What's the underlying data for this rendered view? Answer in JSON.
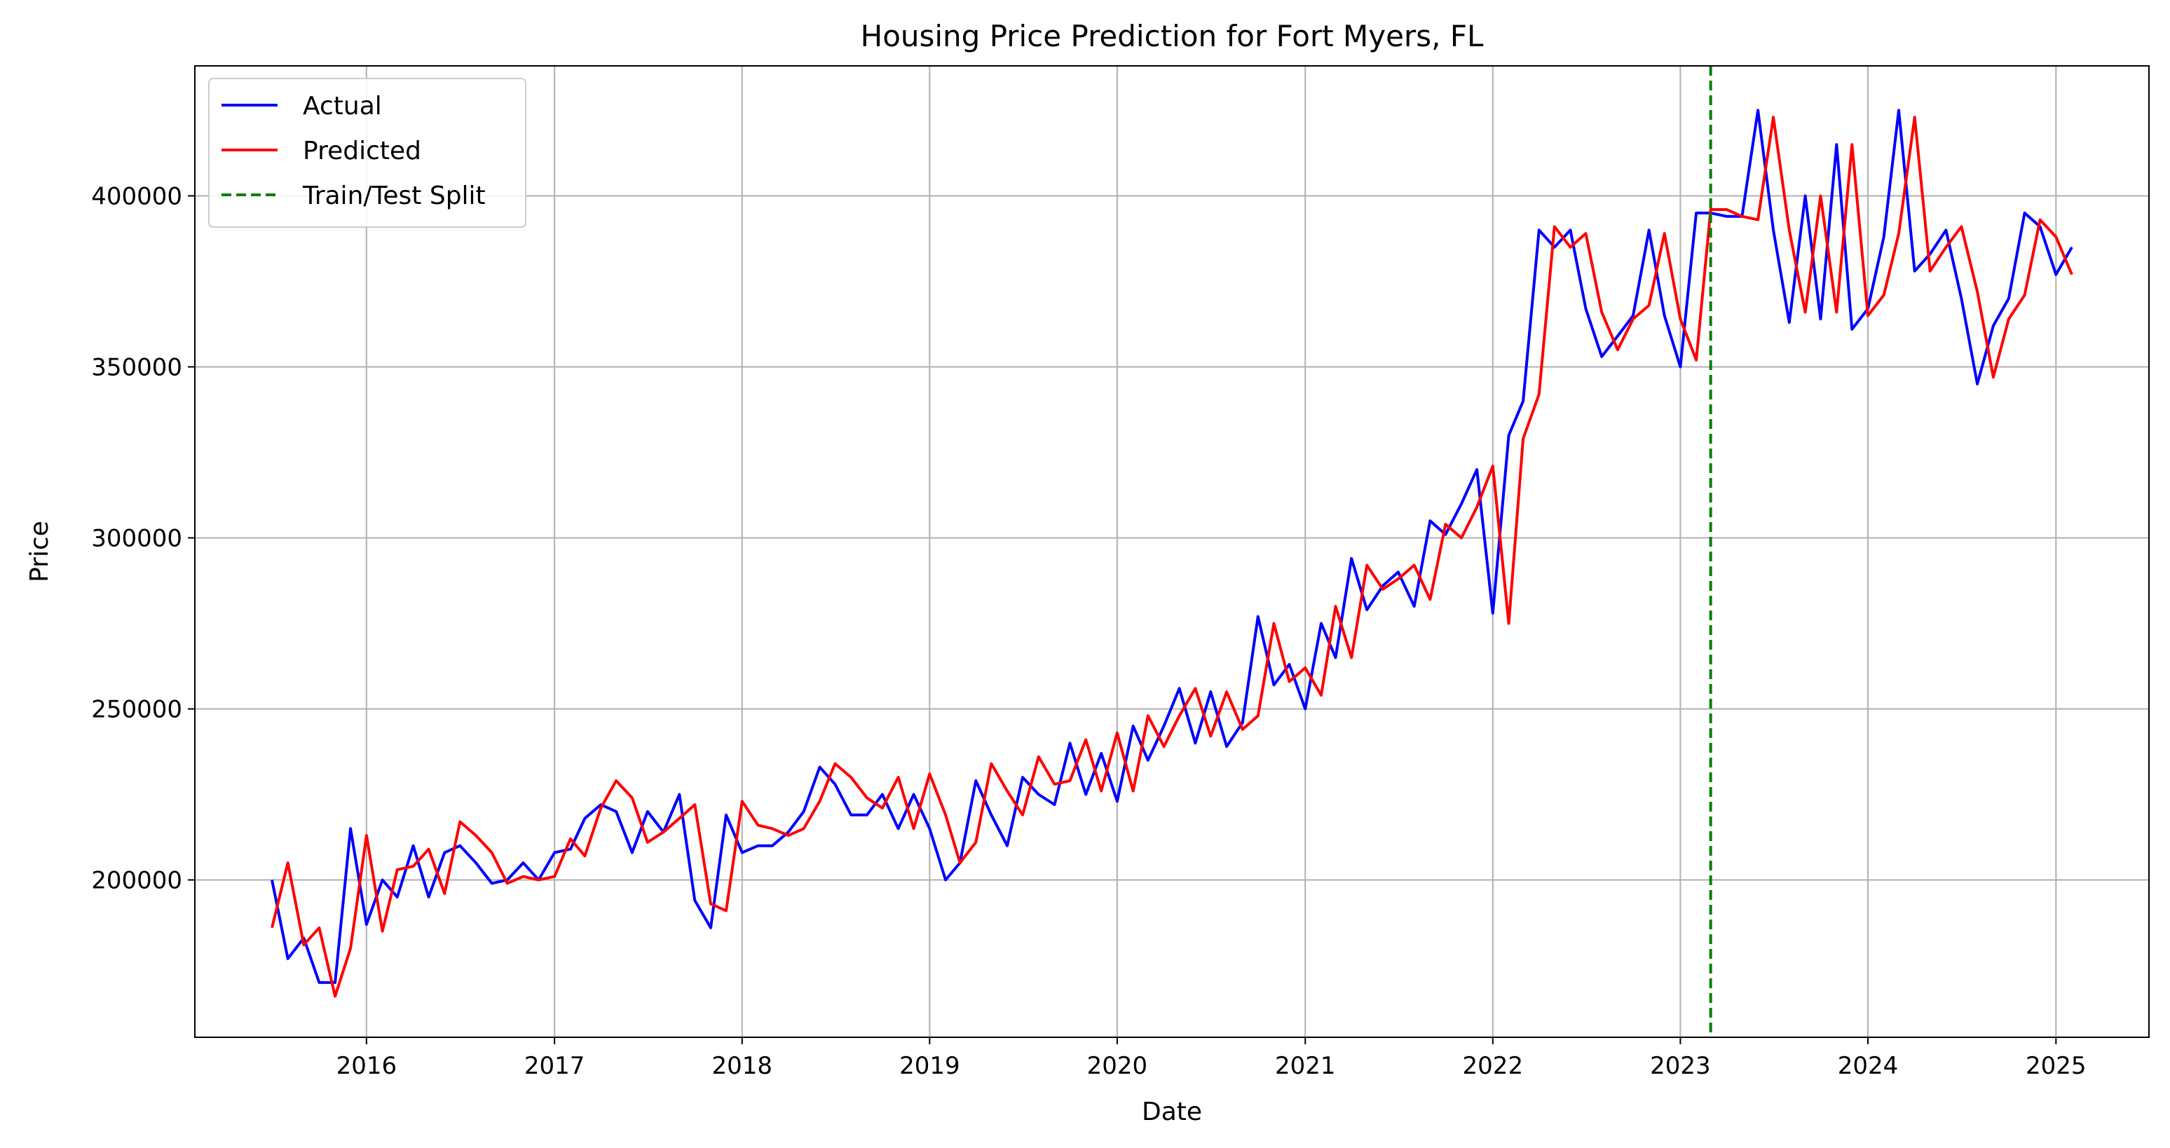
{
  "chart_data": {
    "type": "line",
    "title": "Housing Price Prediction for Fort Myers, FL",
    "xlabel": "Date",
    "ylabel": "Price",
    "xlim": [
      "2015-02-01",
      "2025-07-01"
    ],
    "ylim": [
      154000,
      438000
    ],
    "grid": true,
    "legend_position": "upper-left",
    "x_ticks": [
      "2016",
      "2017",
      "2018",
      "2019",
      "2020",
      "2021",
      "2022",
      "2023",
      "2024",
      "2025"
    ],
    "y_ticks": [
      200000,
      250000,
      300000,
      350000,
      400000
    ],
    "x": [
      "2015-07",
      "2015-08",
      "2015-09",
      "2015-10",
      "2015-11",
      "2015-12",
      "2016-01",
      "2016-02",
      "2016-03",
      "2016-04",
      "2016-05",
      "2016-06",
      "2016-07",
      "2016-08",
      "2016-09",
      "2016-10",
      "2016-11",
      "2016-12",
      "2017-01",
      "2017-02",
      "2017-03",
      "2017-04",
      "2017-05",
      "2017-06",
      "2017-07",
      "2017-08",
      "2017-09",
      "2017-10",
      "2017-11",
      "2017-12",
      "2018-01",
      "2018-02",
      "2018-03",
      "2018-04",
      "2018-05",
      "2018-06",
      "2018-07",
      "2018-08",
      "2018-09",
      "2018-10",
      "2018-11",
      "2018-12",
      "2019-01",
      "2019-02",
      "2019-03",
      "2019-04",
      "2019-05",
      "2019-06",
      "2019-07",
      "2019-08",
      "2019-09",
      "2019-10",
      "2019-11",
      "2019-12",
      "2020-01",
      "2020-02",
      "2020-03",
      "2020-04",
      "2020-05",
      "2020-06",
      "2020-07",
      "2020-08",
      "2020-09",
      "2020-10",
      "2020-11",
      "2020-12",
      "2021-01",
      "2021-02",
      "2021-03",
      "2021-04",
      "2021-05",
      "2021-06",
      "2021-07",
      "2021-08",
      "2021-09",
      "2021-10",
      "2021-11",
      "2021-12",
      "2022-01",
      "2022-02",
      "2022-03",
      "2022-04",
      "2022-05",
      "2022-06",
      "2022-07",
      "2022-08",
      "2022-09",
      "2022-10",
      "2022-11",
      "2022-12",
      "2023-01",
      "2023-02",
      "2023-03",
      "2023-04",
      "2023-05",
      "2023-06",
      "2023-07",
      "2023-08",
      "2023-09",
      "2023-10",
      "2023-11",
      "2023-12",
      "2024-01",
      "2024-02",
      "2024-03",
      "2024-04",
      "2024-05",
      "2024-06",
      "2024-07",
      "2024-08",
      "2024-09",
      "2024-10",
      "2024-11",
      "2024-12",
      "2025-01",
      "2025-02"
    ],
    "series": [
      {
        "name": "Actual",
        "color": "#0000ff",
        "values": [
          200000,
          177000,
          183000,
          170000,
          170000,
          215000,
          187000,
          200000,
          195000,
          210000,
          195000,
          208000,
          210000,
          205000,
          199000,
          200000,
          205000,
          200000,
          208000,
          209000,
          218000,
          222000,
          220000,
          208000,
          220000,
          214000,
          225000,
          194000,
          186000,
          219000,
          208000,
          210000,
          210000,
          214000,
          220000,
          233000,
          228000,
          219000,
          219000,
          225000,
          215000,
          225000,
          215000,
          200000,
          205000,
          229000,
          219000,
          210000,
          230000,
          225000,
          222000,
          240000,
          225000,
          237000,
          223000,
          245000,
          235000,
          245000,
          256000,
          240000,
          255000,
          239000,
          246000,
          277000,
          257000,
          263000,
          250000,
          275000,
          265000,
          294000,
          279000,
          286000,
          290000,
          280000,
          305000,
          301000,
          310000,
          320000,
          278000,
          330000,
          340000,
          390000,
          385000,
          390000,
          367000,
          353000,
          359000,
          365000,
          390000,
          365000,
          350000,
          395000,
          395000,
          394000,
          394000,
          425000,
          390000,
          363000,
          400000,
          364000,
          415000,
          361000,
          367000,
          388000,
          425000,
          378000,
          383000,
          390000,
          370000,
          345000,
          362000,
          370000,
          395000,
          391000,
          377000,
          385000
        ]
      },
      {
        "name": "Predicted",
        "color": "#ff0000",
        "values": [
          186000,
          205000,
          181000,
          186000,
          166000,
          180000,
          213000,
          185000,
          203000,
          204000,
          209000,
          196000,
          217000,
          213000,
          208000,
          199000,
          201000,
          200000,
          201000,
          212000,
          207000,
          221000,
          229000,
          224000,
          211000,
          214000,
          218000,
          222000,
          193000,
          191000,
          223000,
          216000,
          215000,
          213000,
          215000,
          223000,
          234000,
          230000,
          224000,
          221000,
          230000,
          215000,
          231000,
          219000,
          205000,
          211000,
          234000,
          226000,
          219000,
          236000,
          228000,
          229000,
          241000,
          226000,
          243000,
          226000,
          248000,
          239000,
          248000,
          256000,
          242000,
          255000,
          244000,
          248000,
          275000,
          258000,
          262000,
          254000,
          280000,
          265000,
          292000,
          285000,
          288000,
          292000,
          282000,
          304000,
          300000,
          309000,
          321000,
          275000,
          329000,
          342000,
          391000,
          385000,
          389000,
          366000,
          355000,
          364000,
          368000,
          389000,
          364000,
          352000,
          396000,
          396000,
          394000,
          393000,
          423000,
          390000,
          366000,
          400000,
          366000,
          415000,
          365000,
          371000,
          389000,
          423000,
          378000,
          385000,
          391000,
          372000,
          347000,
          364000,
          371000,
          393000,
          388000,
          377000
        ]
      },
      {
        "name": "Train/Test Split",
        "color": "#008000",
        "style": "dashed",
        "x_value": "2023-03"
      }
    ]
  }
}
